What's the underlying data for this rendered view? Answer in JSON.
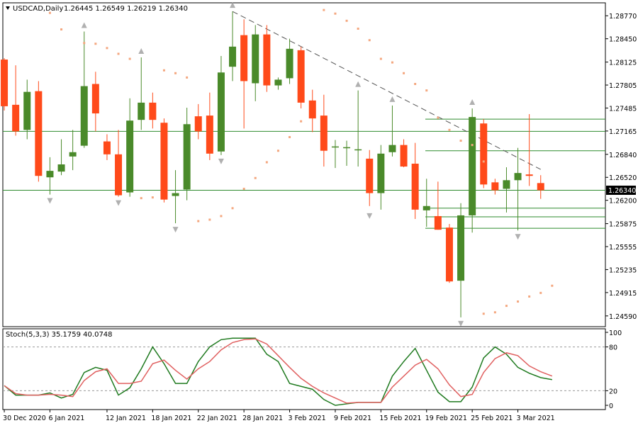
{
  "header": {
    "symbol": "USDCAD,Daily",
    "ohlc": "1.26445 1.26549 1.26219 1.26340"
  },
  "indicator": {
    "label": "Stoch(5,3,3) 35.1759 40.0748"
  },
  "colors": {
    "bull": "#4a8a2a",
    "bear": "#ff4a1a",
    "grid_h": "#2e8b2e",
    "psar": "#f4a77f",
    "stoch_main": "#1f7a1f",
    "stoch_signal": "#e06060",
    "arrow": "#b0b0b0",
    "trendline": "#555555"
  },
  "chart_data": [
    {
      "type": "candlestick",
      "title": "USDCAD,Daily",
      "ylim": [
        1.2444,
        1.2895
      ],
      "yticks": [
        "1.28770",
        "1.28450",
        "1.28125",
        "1.27805",
        "1.27485",
        "1.27165",
        "1.26840",
        "1.26520",
        "1.26200",
        "1.25875",
        "1.25555",
        "1.25235",
        "1.24915",
        "1.24590"
      ],
      "current_price": "1.26340",
      "xticks": [
        "30 Dec 2020",
        "6 Jan 2021",
        "12 Jan 2021",
        "18 Jan 2021",
        "22 Jan 2021",
        "28 Jan 2021",
        "3 Feb 2021",
        "9 Feb 2021",
        "15 Feb 2021",
        "19 Feb 2021",
        "25 Feb 2021",
        "3 Mar 2021"
      ],
      "xtick_index": [
        0,
        4,
        9,
        13,
        17,
        21,
        25,
        29,
        33,
        37,
        41,
        45
      ],
      "ohlc": [
        [
          1.2816,
          1.2818,
          1.2745,
          1.2751
        ],
        [
          1.2753,
          1.2808,
          1.271,
          1.2716
        ],
        [
          1.2718,
          1.2788,
          1.2705,
          1.2771
        ],
        [
          1.2772,
          1.2786,
          1.2646,
          1.2654
        ],
        [
          1.2652,
          1.268,
          1.2628,
          1.2661
        ],
        [
          1.266,
          1.2705,
          1.2655,
          1.267
        ],
        [
          1.2681,
          1.2718,
          1.2662,
          1.2687
        ],
        [
          1.2696,
          1.2855,
          1.2693,
          1.2779
        ],
        [
          1.2782,
          1.2799,
          1.2716,
          1.2741
        ],
        [
          1.2702,
          1.2712,
          1.2676,
          1.2684
        ],
        [
          1.2684,
          1.2718,
          1.2625,
          1.2627
        ],
        [
          1.2631,
          1.2762,
          1.2625,
          1.2731
        ],
        [
          1.2732,
          1.2819,
          1.2718,
          1.2756
        ],
        [
          1.2756,
          1.277,
          1.272,
          1.2732
        ],
        [
          1.2728,
          1.2734,
          1.2617,
          1.2621
        ],
        [
          1.2626,
          1.2662,
          1.2588,
          1.263
        ],
        [
          1.2635,
          1.2749,
          1.262,
          1.2726
        ],
        [
          1.2737,
          1.2754,
          1.2705,
          1.2716
        ],
        [
          1.2738,
          1.277,
          1.2676,
          1.2685
        ],
        [
          1.2688,
          1.2821,
          1.2683,
          1.2798
        ],
        [
          1.2806,
          1.2883,
          1.2786,
          1.2834
        ],
        [
          1.285,
          1.2872,
          1.272,
          1.2786
        ],
        [
          1.2783,
          1.2864,
          1.2758,
          1.2851
        ],
        [
          1.2851,
          1.2864,
          1.2771,
          1.278
        ],
        [
          1.278,
          1.2791,
          1.2774,
          1.2788
        ],
        [
          1.279,
          1.2845,
          1.2782,
          1.2831
        ],
        [
          1.2829,
          1.2834,
          1.2748,
          1.2756
        ],
        [
          1.2759,
          1.2774,
          1.2715,
          1.2734
        ],
        [
          1.2738,
          1.2767,
          1.2667,
          1.2689
        ],
        [
          1.2695,
          1.2704,
          1.2665,
          1.2695
        ],
        [
          1.2694,
          1.2703,
          1.2668,
          1.2694
        ],
        [
          1.2691,
          1.2773,
          1.2667,
          1.2691
        ],
        [
          1.2678,
          1.269,
          1.2612,
          1.263
        ],
        [
          1.263,
          1.2697,
          1.2607,
          1.2685
        ],
        [
          1.2687,
          1.2752,
          1.2681,
          1.2697
        ],
        [
          1.2697,
          1.2705,
          1.2666,
          1.2667
        ],
        [
          1.2671,
          1.27,
          1.2594,
          1.2607
        ],
        [
          1.2606,
          1.265,
          1.2583,
          1.2612
        ],
        [
          1.2598,
          1.2646,
          1.2579,
          1.2579
        ],
        [
          1.2582,
          1.2587,
          1.2505,
          1.2507
        ],
        [
          1.2508,
          1.2616,
          1.2457,
          1.2599
        ],
        [
          1.2599,
          1.2748,
          1.2575,
          1.2736
        ],
        [
          1.2727,
          1.2733,
          1.2637,
          1.2642
        ],
        [
          1.2645,
          1.265,
          1.2628,
          1.2634
        ],
        [
          1.2636,
          1.2666,
          1.2603,
          1.2648
        ],
        [
          1.2648,
          1.2693,
          1.2578,
          1.2658
        ],
        [
          1.2656,
          1.274,
          1.264,
          1.2654
        ],
        [
          1.2644,
          1.2655,
          1.2622,
          1.2634
        ]
      ],
      "horizontal_lines": [
        1.2634,
        1.2716,
        1.2733,
        1.2689,
        1.2609,
        1.2597,
        1.2581
      ],
      "trendline": [
        [
          20,
          1.2883
        ],
        [
          47,
          1.2663
        ]
      ],
      "psar": [
        [
          4,
          1.2881
        ],
        [
          5,
          1.2858
        ],
        [
          7,
          1.2839
        ],
        [
          8,
          1.2838
        ],
        [
          9,
          1.2832
        ],
        [
          10,
          1.2824
        ],
        [
          11,
          1.2817
        ],
        [
          12,
          1.2623
        ],
        [
          13,
          1.2624
        ],
        [
          14,
          1.2801
        ],
        [
          15,
          1.2797
        ],
        [
          16,
          1.2791
        ],
        [
          17,
          1.2591
        ],
        [
          18,
          1.2593
        ],
        [
          19,
          1.2598
        ],
        [
          20,
          1.2609
        ],
        [
          21,
          1.2636
        ],
        [
          22,
          1.2651
        ],
        [
          23,
          1.2673
        ],
        [
          24,
          1.2689
        ],
        [
          25,
          1.2708
        ],
        [
          26,
          1.273
        ],
        [
          28,
          1.2885
        ],
        [
          29,
          1.288
        ],
        [
          30,
          1.287
        ],
        [
          31,
          1.2859
        ],
        [
          32,
          1.2843
        ],
        [
          33,
          1.2817
        ],
        [
          34,
          1.2812
        ],
        [
          35,
          1.2797
        ],
        [
          36,
          1.2782
        ],
        [
          37,
          1.2773
        ],
        [
          38,
          1.2735
        ],
        [
          39,
          1.2718
        ],
        [
          40,
          1.2703
        ],
        [
          41,
          1.2697
        ],
        [
          42,
          1.2674
        ],
        [
          42,
          1.2462
        ],
        [
          43,
          1.2464
        ],
        [
          44,
          1.2473
        ],
        [
          45,
          1.2479
        ],
        [
          46,
          1.2486
        ],
        [
          47,
          1.2491
        ],
        [
          48,
          1.2501
        ]
      ],
      "fractals_up": [
        [
          7,
          1.2855
        ],
        [
          12,
          1.2819
        ],
        [
          20,
          1.2883
        ],
        [
          31,
          1.2773
        ],
        [
          34,
          1.2752
        ],
        [
          41,
          1.2748
        ]
      ],
      "fractals_down": [
        [
          4,
          1.2628
        ],
        [
          10,
          1.2625
        ],
        [
          15,
          1.2588
        ],
        [
          19,
          1.2683
        ],
        [
          32,
          1.2607
        ],
        [
          40,
          1.2457
        ],
        [
          45,
          1.2578
        ]
      ]
    },
    {
      "type": "line",
      "title": "Stoch(5,3,3) 35.1759 40.0748",
      "ylim": [
        0,
        100
      ],
      "yticks": [
        "100",
        "80",
        "20",
        "0"
      ],
      "levels": [
        80,
        20
      ],
      "series": [
        {
          "values": [
            27,
            14,
            14,
            14,
            17,
            10,
            15,
            45,
            52,
            48,
            14,
            24,
            50,
            80,
            57,
            30,
            30,
            60,
            80,
            90,
            92,
            92,
            92,
            70,
            60,
            30,
            26,
            22,
            8,
            0,
            2,
            4,
            4,
            4,
            40,
            60,
            78,
            48,
            18,
            5,
            5,
            25,
            65,
            80,
            70,
            52,
            44,
            38,
            35.1759
          ]
        },
        {
          "values": [
            27,
            16,
            14,
            14,
            15,
            14,
            12,
            34,
            46,
            50,
            30,
            30,
            33,
            57,
            62,
            48,
            36,
            50,
            60,
            76,
            86,
            90,
            91,
            84,
            68,
            52,
            37,
            26,
            17,
            10,
            3,
            4,
            4,
            4,
            25,
            40,
            55,
            63,
            50,
            28,
            12,
            15,
            45,
            64,
            72,
            68,
            54,
            46,
            40.0748
          ]
        }
      ]
    }
  ]
}
